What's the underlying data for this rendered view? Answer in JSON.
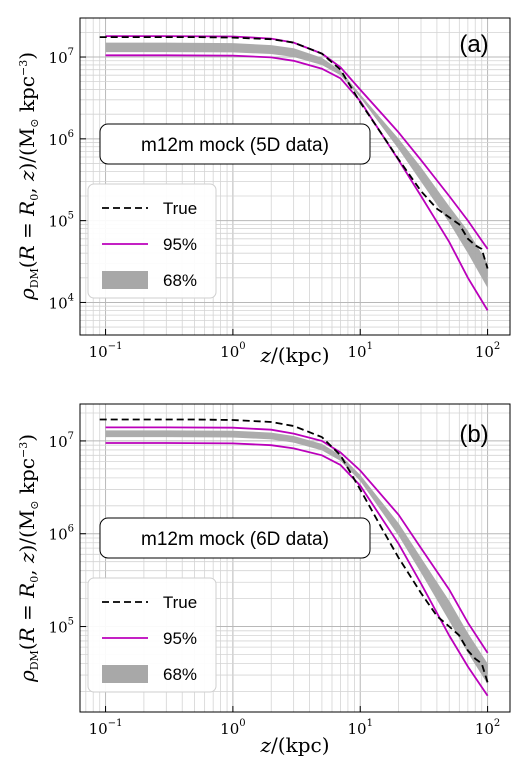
{
  "chart_data": [
    {
      "type": "line",
      "panel_label": "(a)",
      "annotation": "m12m mock (5D data)",
      "xlabel": "z/(kpc)",
      "ylabel": "ρDM(R = R0, z)/(M⊙ kpc−3)",
      "xscale": "log",
      "yscale": "log",
      "xlim": [
        0.063,
        150
      ],
      "ylim": [
        4000,
        30000000
      ],
      "x_ticks": [
        "10^-1",
        "10^0",
        "10^1",
        "10^2"
      ],
      "y_ticks": [
        "10^4",
        "10^5",
        "10^6",
        "10^7"
      ],
      "grid": true,
      "legend": {
        "placement": "lower-left",
        "entries": [
          "True",
          "95%",
          "68%"
        ]
      },
      "series": [
        {
          "name": "True",
          "style": "dashed",
          "color": "#000000",
          "x": [
            0.09,
            0.2,
            0.5,
            1,
            2,
            3,
            5,
            7,
            10,
            15,
            20,
            30,
            40,
            50,
            60,
            70,
            80,
            90,
            100
          ],
          "y": [
            17500000,
            17500000,
            17500000,
            17300000,
            16500000,
            15000000,
            11000000,
            7000000,
            2800000,
            1100000,
            560000,
            230000,
            140000,
            110000,
            90000,
            60000,
            50000,
            45000,
            26000
          ]
        },
        {
          "name": "95% upper",
          "legend": "95%",
          "style": "solid",
          "color": "#bb00bb",
          "x": [
            0.1,
            0.3,
            1,
            2,
            3,
            5,
            7,
            10,
            20,
            30,
            50,
            70,
            100
          ],
          "y": [
            18000000,
            18000000,
            17800000,
            16800000,
            15000000,
            11000000,
            7500000,
            4000000,
            1200000,
            550000,
            200000,
            100000,
            45000
          ]
        },
        {
          "name": "95% lower",
          "legend": "95%",
          "style": "solid",
          "color": "#bb00bb",
          "x": [
            0.1,
            0.3,
            1,
            2,
            3,
            5,
            7,
            10,
            20,
            30,
            50,
            70,
            100
          ],
          "y": [
            10500000,
            10500000,
            10400000,
            9900000,
            9000000,
            7200000,
            5500000,
            2900000,
            550000,
            200000,
            55000,
            20000,
            8000
          ]
        },
        {
          "name": "68% upper",
          "legend": "68%",
          "style": "band",
          "color": "#a8a8a8",
          "x": [
            0.1,
            0.3,
            1,
            2,
            3,
            5,
            7,
            10,
            20,
            30,
            50,
            70,
            100
          ],
          "y": [
            15000000,
            15000000,
            14800000,
            14000000,
            12800000,
            9800000,
            6800000,
            3500000,
            1000000,
            450000,
            150000,
            75000,
            30000
          ]
        },
        {
          "name": "68% lower",
          "legend": "68%",
          "style": "band",
          "color": "#a8a8a8",
          "x": [
            0.1,
            0.3,
            1,
            2,
            3,
            5,
            7,
            10,
            20,
            30,
            50,
            70,
            100
          ],
          "y": [
            11500000,
            11500000,
            11400000,
            10900000,
            10000000,
            8000000,
            6000000,
            3200000,
            750000,
            300000,
            95000,
            40000,
            15000
          ]
        }
      ]
    },
    {
      "type": "line",
      "panel_label": "(b)",
      "annotation": "m12m mock (6D data)",
      "xlabel": "z/(kpc)",
      "ylabel": "ρDM(R = R0, z)/(M⊙ kpc−3)",
      "xscale": "log",
      "yscale": "log",
      "xlim": [
        0.063,
        150
      ],
      "ylim": [
        12000,
        25000000
      ],
      "x_ticks": [
        "10^-1",
        "10^0",
        "10^1",
        "10^2"
      ],
      "y_ticks": [
        "10^5",
        "10^6",
        "10^7"
      ],
      "grid": true,
      "legend": {
        "placement": "lower-left",
        "entries": [
          "True",
          "95%",
          "68%"
        ]
      },
      "series": [
        {
          "name": "True",
          "style": "dashed",
          "color": "#000000",
          "x": [
            0.09,
            0.2,
            0.5,
            1,
            2,
            3,
            5,
            7,
            10,
            15,
            20,
            30,
            40,
            50,
            60,
            70,
            80,
            90,
            100
          ],
          "y": [
            17000000,
            17000000,
            17000000,
            16800000,
            16000000,
            14500000,
            11000000,
            7000000,
            3000000,
            1100000,
            550000,
            230000,
            130000,
            100000,
            80000,
            55000,
            45000,
            40000,
            25000
          ]
        },
        {
          "name": "95% upper",
          "legend": "95%",
          "style": "solid",
          "color": "#bb00bb",
          "x": [
            0.1,
            0.3,
            1,
            2,
            3,
            5,
            7,
            10,
            20,
            30,
            50,
            70,
            100
          ],
          "y": [
            14000000,
            14000000,
            13900000,
            13200000,
            12000000,
            10000000,
            7500000,
            4800000,
            1600000,
            700000,
            250000,
            110000,
            52000
          ]
        },
        {
          "name": "95% lower",
          "legend": "95%",
          "style": "solid",
          "color": "#bb00bb",
          "x": [
            0.1,
            0.3,
            1,
            2,
            3,
            5,
            7,
            10,
            20,
            30,
            50,
            70,
            100
          ],
          "y": [
            9500000,
            9500000,
            9400000,
            9000000,
            8300000,
            7000000,
            5500000,
            3300000,
            780000,
            290000,
            80000,
            37000,
            18000
          ]
        },
        {
          "name": "68% upper",
          "legend": "68%",
          "style": "band",
          "color": "#a8a8a8",
          "x": [
            0.1,
            0.3,
            1,
            2,
            3,
            5,
            7,
            10,
            20,
            30,
            50,
            70,
            100
          ],
          "y": [
            13000000,
            13000000,
            12900000,
            12300000,
            11300000,
            9300000,
            7000000,
            4300000,
            1300000,
            550000,
            190000,
            85000,
            40000
          ]
        },
        {
          "name": "68% lower",
          "legend": "68%",
          "style": "band",
          "color": "#a8a8a8",
          "x": [
            0.1,
            0.3,
            1,
            2,
            3,
            5,
            7,
            10,
            20,
            30,
            50,
            70,
            100
          ],
          "y": [
            11000000,
            11000000,
            10900000,
            10400000,
            9600000,
            7900000,
            6100000,
            3700000,
            950000,
            380000,
            115000,
            52000,
            24000
          ]
        }
      ]
    }
  ]
}
